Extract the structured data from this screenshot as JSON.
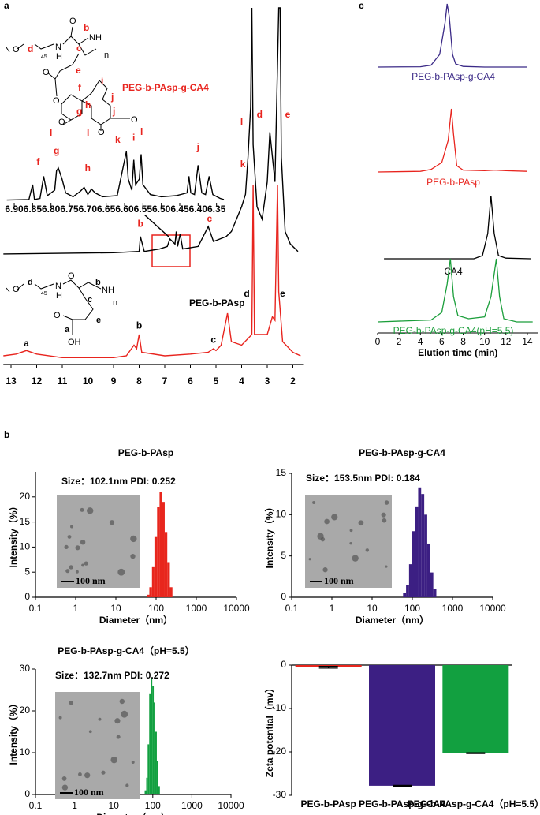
{
  "panel_labels": [
    "a",
    "b",
    "c"
  ],
  "structures": [
    {
      "labels": [
        "O",
        "d",
        "45",
        "N",
        "H",
        "O",
        "b",
        "NH",
        "c",
        "n",
        "O",
        "e",
        "O",
        "f",
        "i",
        "g",
        "h",
        "O",
        "l",
        "j",
        "j",
        "O",
        "O",
        "l",
        "k",
        "l"
      ]
    },
    {
      "labels": [
        "O",
        "d",
        "45",
        "N",
        "H",
        "O",
        "b",
        "NH",
        "c",
        "n",
        "a",
        "e",
        "O",
        "OH"
      ]
    }
  ],
  "chart_data": [
    {
      "type": "nmr",
      "xlim": [
        13.3,
        1.6
      ],
      "xticks": [
        13,
        12,
        11,
        10,
        9,
        8,
        7,
        6,
        5,
        4,
        3,
        2
      ],
      "series": [
        {
          "name": "PEG-b-PAsp-g-CA4",
          "color": "#000000",
          "annotation_color": "#e8241e",
          "ylim": [
            0,
            100
          ],
          "x": [
            13.3,
            9,
            8.0,
            7.95,
            7.8,
            7.2,
            6.9,
            6.8,
            6.6,
            6.55,
            6.5,
            6.4,
            6.3,
            5.7,
            5.3,
            5.1,
            4.6,
            4.4,
            4.0,
            3.85,
            3.75,
            3.65,
            3.6,
            3.55,
            3.4,
            3.2,
            3.0,
            2.9,
            2.7,
            2.55,
            2.5,
            2.45,
            2.3,
            2.1,
            1.8
          ],
          "values": [
            1,
            1.5,
            2,
            8,
            2,
            3,
            4,
            7,
            5,
            10,
            4,
            9,
            3,
            4,
            12,
            6,
            8,
            10,
            20,
            25,
            40,
            60,
            100,
            45,
            20,
            15,
            30,
            50,
            30,
            100,
            100,
            40,
            10,
            5,
            2
          ],
          "annotations": [
            {
              "text": "b",
              "x": 7.95,
              "y": 11
            },
            {
              "text": "c",
              "x": 5.25,
              "y": 13
            },
            {
              "text": "k",
              "x": 3.95,
              "y": 35
            },
            {
              "text": "l",
              "x": 4.0,
              "y": 52
            },
            {
              "text": "d",
              "x": 3.3,
              "y": 55
            },
            {
              "text": "e",
              "x": 2.2,
              "y": 55
            }
          ]
        },
        {
          "name": "PEG-b-PAsp",
          "color": "#e8241e",
          "annotation_color": "#000000",
          "ylim": [
            0,
            100
          ],
          "x": [
            13.3,
            12.8,
            12.4,
            12.0,
            11,
            9,
            8.5,
            8.2,
            8.1,
            8.0,
            7.9,
            7.0,
            6.0,
            5.3,
            5.1,
            5.0,
            4.8,
            4.55,
            4.4,
            4.0,
            3.6,
            3.55,
            3.5,
            3.0,
            2.8,
            2.7,
            2.6,
            2.55,
            2.4,
            2.0,
            1.7
          ],
          "values": [
            2,
            2.5,
            3.5,
            2.5,
            1.5,
            1.5,
            2,
            5,
            4,
            8,
            3,
            2,
            2.5,
            3,
            4,
            3.5,
            5,
            14,
            6,
            5,
            8,
            50,
            8,
            8,
            13,
            12,
            50,
            20,
            6,
            3,
            2
          ],
          "annotations": [
            {
              "text": "a",
              "x": 12.4,
              "y": 4
            },
            {
              "text": "b",
              "x": 8.0,
              "y": 9
            },
            {
              "text": "c",
              "x": 5.1,
              "y": 5
            },
            {
              "text": "d",
              "x": 3.8,
              "y": 18
            },
            {
              "text": "e",
              "x": 2.4,
              "y": 18
            }
          ]
        }
      ]
    },
    {
      "type": "nmr",
      "xlim": [
        6.92,
        6.33
      ],
      "xticks": [
        {
          "value": 6.9,
          "label": "6.90"
        },
        6.85,
        {
          "value": 6.8,
          "label": "6.80"
        },
        6.75,
        {
          "value": 6.7,
          "label": "6.70"
        },
        6.65,
        {
          "value": 6.6,
          "label": "6.60"
        },
        6.55,
        {
          "value": 6.5,
          "label": "6.50"
        },
        6.45,
        {
          "value": 6.4,
          "label": "6.40"
        },
        6.35
      ],
      "series": [
        {
          "color": "#000000",
          "annotation_color": "#e8241e",
          "ylim": [
            0,
            100
          ],
          "x": [
            6.92,
            6.86,
            6.85,
            6.845,
            6.83,
            6.82,
            6.81,
            6.79,
            6.785,
            6.78,
            6.77,
            6.76,
            6.74,
            6.72,
            6.71,
            6.7,
            6.69,
            6.68,
            6.66,
            6.62,
            6.595,
            6.59,
            6.58,
            6.575,
            6.57,
            6.56,
            6.555,
            6.55,
            6.53,
            6.5,
            6.46,
            6.43,
            6.425,
            6.42,
            6.41,
            6.4,
            6.39,
            6.38,
            6.37,
            6.36,
            6.34,
            6.33
          ],
          "values": [
            2,
            3,
            30,
            3,
            5,
            45,
            10,
            20,
            55,
            60,
            40,
            15,
            8,
            18,
            25,
            12,
            22,
            15,
            8,
            10,
            90,
            40,
            20,
            75,
            30,
            40,
            85,
            30,
            12,
            8,
            10,
            15,
            45,
            15,
            12,
            65,
            15,
            12,
            45,
            12,
            5,
            3
          ],
          "annotations": [
            {
              "text": "f",
              "x": 6.835,
              "y": 62
            },
            {
              "text": "g",
              "x": 6.785,
              "y": 82
            },
            {
              "text": "h",
              "x": 6.7,
              "y": 50
            },
            {
              "text": "i",
              "x": 6.575,
              "y": 105
            },
            {
              "text": "j",
              "x": 6.4,
              "y": 88
            }
          ]
        }
      ]
    },
    {
      "type": "chromatogram",
      "xlim": [
        0,
        15
      ],
      "xticks": [
        0,
        2,
        4,
        6,
        8,
        10,
        12,
        14
      ],
      "xlabel": "Elution time (min)",
      "ylim": [
        0,
        100
      ],
      "series": [
        {
          "name": "PEG-b-PAsp-g-CA4",
          "color": "#3b2a87",
          "x": [
            0,
            4,
            5,
            5.8,
            6.3,
            6.5,
            6.7,
            7.0,
            7.3,
            8,
            10,
            14
          ],
          "values": [
            0,
            0.5,
            3,
            20,
            70,
            100,
            80,
            20,
            5,
            1,
            0,
            0
          ]
        },
        {
          "name": "PEG-b-PAsp",
          "color": "#e8241e",
          "x": [
            0,
            4,
            5,
            6,
            6.6,
            6.9,
            7.1,
            7.4,
            8,
            10,
            11,
            12,
            14
          ],
          "values": [
            0,
            1,
            4,
            15,
            50,
            100,
            60,
            10,
            3,
            2,
            3,
            2,
            1
          ]
        },
        {
          "name": "CA4",
          "color": "#000000",
          "x": [
            0.6,
            9,
            9.8,
            10.3,
            10.6,
            10.9,
            11.3,
            12,
            14.3
          ],
          "values": [
            0,
            0,
            5,
            40,
            100,
            40,
            5,
            1,
            0
          ]
        },
        {
          "name": "PEG-b-PAsp-g-CA4(pH=5.5)",
          "color": "#1a9e3a",
          "x": [
            0,
            5,
            6,
            6.5,
            6.8,
            7.1,
            7.5,
            8.5,
            10,
            10.6,
            11.1,
            11.4,
            11.8,
            13,
            14.5
          ],
          "values": [
            0,
            3,
            15,
            60,
            100,
            40,
            10,
            5,
            8,
            40,
            100,
            40,
            5,
            0,
            0
          ]
        }
      ]
    },
    {
      "type": "histogram",
      "title": "PEG-b-PAsp",
      "annotation": "Size：102.1nm PDI: 0.252",
      "scale_bar": "100 nm",
      "xlabel": "Diameter（nm）",
      "ylabel": "Intensity（%）",
      "xscale": "log",
      "xlim": [
        0.1,
        10000
      ],
      "xticks": [
        0.1,
        1,
        10,
        100,
        1000,
        10000
      ],
      "ylim": [
        0,
        25
      ],
      "yticks": [
        0,
        5,
        10,
        15,
        20
      ],
      "color": "#e8261d",
      "bins": [
        59,
        68,
        79,
        91,
        106,
        122,
        142,
        164,
        190,
        220,
        255
      ],
      "values": [
        0.5,
        2,
        6,
        12,
        18,
        21,
        19,
        13,
        7,
        2
      ]
    },
    {
      "type": "histogram",
      "title": "PEG-b-PAsp-g-CA4",
      "annotation": "Size：153.5nm PDI: 0.184",
      "scale_bar": "100 nm",
      "xlabel": "Diameter（nm）",
      "ylabel": "Intensity（%）",
      "xscale": "log",
      "xlim": [
        0.1,
        10000
      ],
      "xticks": [
        0.1,
        1,
        10,
        100,
        1000,
        10000
      ],
      "ylim": [
        0,
        15
      ],
      "yticks": [
        0,
        5,
        10,
        15
      ],
      "color": "#3c1f83",
      "bins": [
        59,
        70,
        83,
        99,
        118,
        140,
        166,
        198,
        235,
        280,
        333,
        396
      ],
      "values": [
        0.5,
        1.5,
        4,
        8,
        11,
        13.3,
        12.5,
        10,
        6.5,
        3,
        1
      ]
    },
    {
      "type": "histogram",
      "title": "PEG-b-PAsp-g-CA4（pH=5.5）",
      "annotation": "Size：132.7nm PDI: 0.272",
      "scale_bar": "100 nm",
      "xlabel": "Diameter（nm）",
      "ylabel": "Intensity（%）",
      "xscale": "log",
      "xlim": [
        0.1,
        10000
      ],
      "xticks": [
        0.1,
        1,
        10,
        100,
        1000,
        10000
      ],
      "ylim": [
        0,
        30
      ],
      "yticks": [
        0,
        10,
        20,
        30
      ],
      "color": "#12a040",
      "bins": [
        62,
        68,
        74,
        81,
        89,
        97,
        106,
        116,
        127,
        139,
        152
      ],
      "values": [
        1,
        4,
        12,
        24,
        28,
        26,
        22,
        15,
        8,
        2
      ]
    },
    {
      "type": "bar",
      "ylabel": "Zeta potential（mv）",
      "ylim": [
        -30,
        0
      ],
      "yticks": [
        0,
        -10,
        -20,
        -30
      ],
      "categories": [
        "PEG-b-PAsp",
        "PEG-b-PAsp-g-CA4",
        "PEG-b-PAsp-g-CA4（pH=5.5）"
      ],
      "values": [
        -0.5,
        -27.8,
        -20.3
      ],
      "errors": [
        0.2,
        0.1,
        0.1
      ],
      "colors": [
        "#e8261d",
        "#3c1f83",
        "#12a040"
      ]
    }
  ]
}
